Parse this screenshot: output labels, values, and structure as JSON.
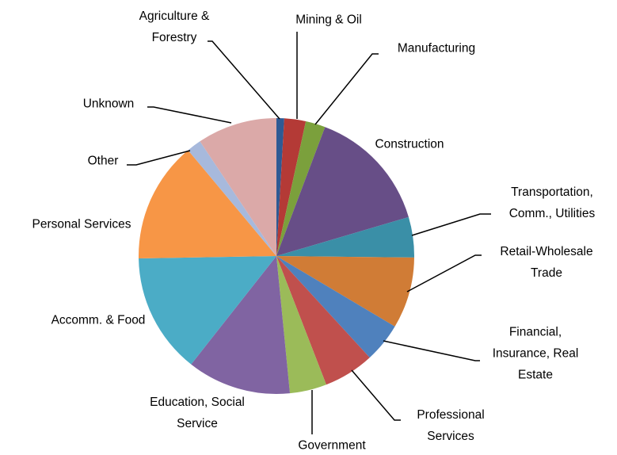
{
  "chart_data": {
    "type": "pie",
    "categories": [
      "Agriculture & Forestry",
      "Mining & Oil",
      "Manufacturing",
      "Construction",
      "Transportation, Comm., Utilities",
      "Retail-Wholesale Trade",
      "Financial, Insurance, Real Estate",
      "Professional Services",
      "Government",
      "Education, Social Service",
      "Accomm. & Food",
      "Personal Services",
      "Other",
      "Unknown"
    ],
    "values": [
      0.9,
      2.5,
      2.3,
      14.6,
      4.7,
      8.3,
      4.6,
      5.9,
      4.3,
      12.1,
      14.0,
      14.1,
      1.7,
      9.3
    ],
    "colors": [
      "#2E5A94",
      "#B43A36",
      "#7BA03C",
      "#674E87",
      "#3A8FA7",
      "#D07C36",
      "#4F81BD",
      "#C0504D",
      "#9BBB59",
      "#8064A2",
      "#4BACC6",
      "#F79646",
      "#A7B9DC",
      "#DBA9A8"
    ]
  }
}
